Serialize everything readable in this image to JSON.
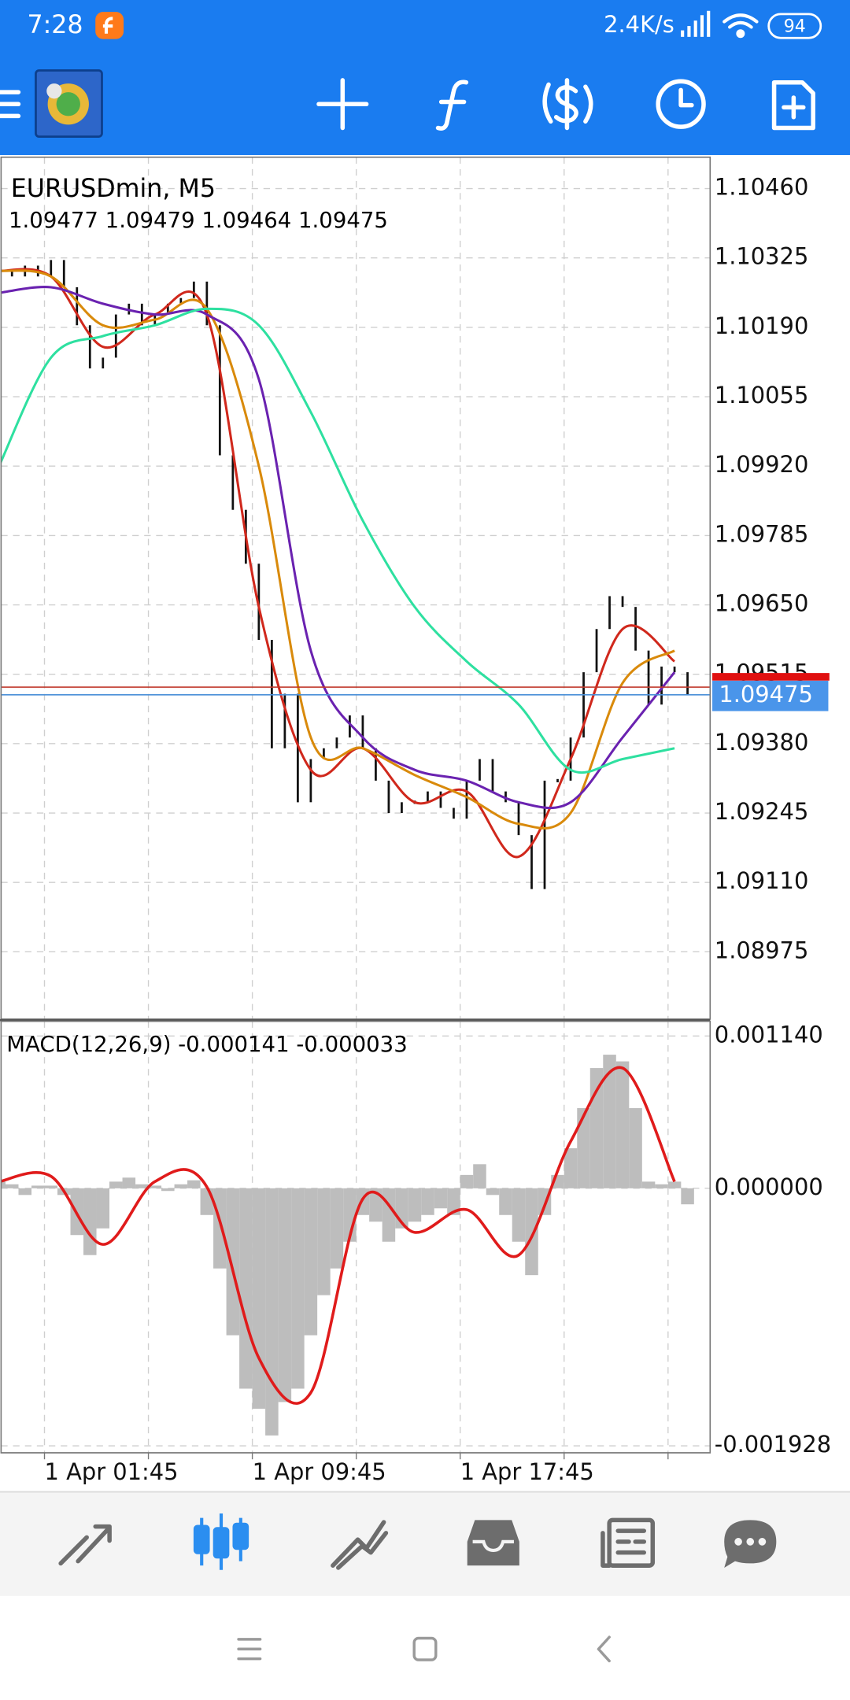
{
  "status_bar": {
    "time": "7:28",
    "network_speed": "2.4K/s",
    "battery": "94"
  },
  "chart_data": [
    {
      "type": "price",
      "title": "EURUSDmin, M5",
      "subtitle": "1.09477 1.09479 1.09464 1.09475",
      "x": [
        0,
        0.5,
        1,
        1.5,
        2,
        2.5,
        3,
        3.5,
        4,
        4.5,
        5,
        5.5,
        6,
        6.5,
        7,
        7.5,
        8,
        8.5,
        9,
        9.5,
        10,
        10.5,
        11,
        11.5,
        12,
        12.5,
        13,
        13.5,
        14,
        14.5,
        15,
        15.5,
        16,
        16.5,
        17,
        17.5,
        18,
        18.5,
        19,
        19.5,
        20,
        20.5,
        21,
        21.5,
        22,
        22.5,
        23,
        23.5,
        24,
        24.5,
        25,
        25.5,
        26,
        26.5
      ],
      "close": [
        1.103,
        1.10289,
        1.1031,
        1.10289,
        1.10321,
        1.10268,
        1.10194,
        1.1011,
        1.10131,
        1.10215,
        1.10236,
        1.10194,
        1.10215,
        1.10236,
        1.10247,
        1.10279,
        1.10194,
        1.09941,
        1.09835,
        1.0973,
        1.09582,
        1.09371,
        1.09477,
        1.09266,
        1.0935,
        1.09371,
        1.09392,
        1.09435,
        1.09371,
        1.09308,
        1.09245,
        1.09266,
        1.09266,
        1.09287,
        1.09255,
        1.09234,
        1.09308,
        1.0935,
        1.09287,
        1.09266,
        1.09202,
        1.09097,
        1.09308,
        1.09308,
        1.09392,
        1.09519,
        1.09603,
        1.09667,
        1.09646,
        1.09561,
        1.09456,
        1.0953,
        1.09519,
        1.09475
      ],
      "ma_x": [
        0,
        2,
        4,
        6,
        8,
        10,
        12,
        14,
        16,
        18,
        20,
        22,
        24,
        26
      ],
      "moving_averages": [
        {
          "color": "#d0281c",
          "values": [
            1.103,
            1.10289,
            1.10152,
            1.10215,
            1.10215,
            1.09646,
            1.09329,
            1.09371,
            1.09266,
            1.09287,
            1.0916,
            1.0935,
            1.09603,
            1.0954
          ]
        },
        {
          "color": "#d98a0b",
          "values": [
            1.103,
            1.10289,
            1.10194,
            1.10205,
            1.10226,
            1.0992,
            1.09392,
            1.09371,
            1.09319,
            1.09276,
            1.09224,
            1.09245,
            1.09498,
            1.09561
          ]
        },
        {
          "color": "#6a22b0",
          "values": [
            1.10257,
            1.10268,
            1.10236,
            1.10215,
            1.10215,
            1.10089,
            1.09561,
            1.09392,
            1.09329,
            1.09308,
            1.09266,
            1.09266,
            1.09392,
            1.09519
          ]
        },
        {
          "color": "#2ee0a0",
          "values": [
            1.0992,
            1.10131,
            1.10173,
            1.10194,
            1.10226,
            1.10194,
            1.10025,
            1.09814,
            1.09646,
            1.0954,
            1.09456,
            1.09329,
            1.0935,
            1.09371
          ]
        }
      ],
      "bid": 1.09475,
      "ask": 1.0949,
      "ylim": [
        1.08844,
        1.10521
      ],
      "yticks": [
        {
          "value": 1.1046,
          "label": "1.10460"
        },
        1.10325,
        {
          "value": 1.1019,
          "label": "1.10190"
        },
        1.10055,
        {
          "value": 1.0992,
          "label": "1.09920"
        },
        1.09785,
        {
          "value": 1.0965,
          "label": "1.09650"
        },
        1.09515,
        {
          "value": 1.0938,
          "label": "1.09380"
        },
        1.09245,
        {
          "value": 1.0911,
          "label": "1.09110"
        },
        1.08975
      ],
      "xlim": [
        0.08,
        27.37
      ],
      "xticks": [
        {
          "value": 1.75,
          "label": "1 Apr 01:45"
        },
        {
          "value": 5.75,
          "label": null
        },
        {
          "value": 9.75,
          "label": "1 Apr 09:45"
        },
        {
          "value": 13.75,
          "label": null
        },
        {
          "value": 17.75,
          "label": "1 Apr 17:45"
        },
        {
          "value": 21.75,
          "label": null
        },
        {
          "value": 25.75,
          "label": null
        }
      ],
      "grid": true
    },
    {
      "type": "macd",
      "title": "MACD(12,26,9) -0.000141 -0.000033",
      "x": [
        0,
        0.5,
        1,
        1.5,
        2,
        2.5,
        3,
        3.5,
        4,
        4.5,
        5,
        5.5,
        6,
        6.5,
        7,
        7.5,
        8,
        8.5,
        9,
        9.5,
        10,
        10.5,
        11,
        11.5,
        12,
        12.5,
        13,
        13.5,
        14,
        14.5,
        15,
        15.5,
        16,
        16.5,
        17,
        17.5,
        18,
        18.5,
        19,
        19.5,
        20,
        20.5,
        21,
        21.5,
        22,
        22.5,
        23,
        23.5,
        24,
        24.5,
        25,
        25.5,
        26,
        26.5
      ],
      "histogram": [
        5e-05,
        3e-05,
        -5e-05,
        2e-05,
        2e-05,
        -5e-05,
        -0.00035,
        -0.0005,
        -0.0003,
        5e-05,
        8e-05,
        3e-05,
        2e-05,
        -2e-05,
        3e-05,
        6e-05,
        -0.0002,
        -0.0006,
        -0.0011,
        -0.0015,
        -0.00165,
        -0.00185,
        -0.0016,
        -0.0015,
        -0.0011,
        -0.0008,
        -0.0006,
        -0.0004,
        -0.0002,
        -0.00025,
        -0.0004,
        -0.0003,
        -0.00025,
        -0.0002,
        -0.00015,
        -0.0002,
        0.0001,
        0.00018,
        -5e-05,
        -0.0002,
        -0.0004,
        -0.00065,
        -0.0002,
        0.0001,
        0.0003,
        0.0006,
        0.0009,
        0.001,
        0.00095,
        0.0006,
        5e-05,
        3e-05,
        5e-05,
        -0.00012
      ],
      "histogram_color": "#bdbdbd",
      "signal_x": [
        0,
        2,
        4,
        6,
        8,
        10,
        12,
        14,
        16,
        18,
        20,
        22,
        24,
        26
      ],
      "signal": [
        5e-05,
        9e-05,
        -0.00042,
        5e-05,
        1e-05,
        -0.00127,
        -0.00153,
        -8e-05,
        -0.00033,
        -0.00016,
        -0.0005,
        0.00035,
        0.0009,
        5e-05
      ],
      "signal_color": "#e01b1b",
      "ylim": [
        -0.00198,
        0.00125
      ],
      "yticks": [
        {
          "value": 0.00114,
          "label": "0.001140"
        },
        {
          "value": 0,
          "label": "0.000000"
        },
        -0.001928
      ],
      "xlim": [
        0.08,
        27.37
      ],
      "grid": true
    }
  ]
}
